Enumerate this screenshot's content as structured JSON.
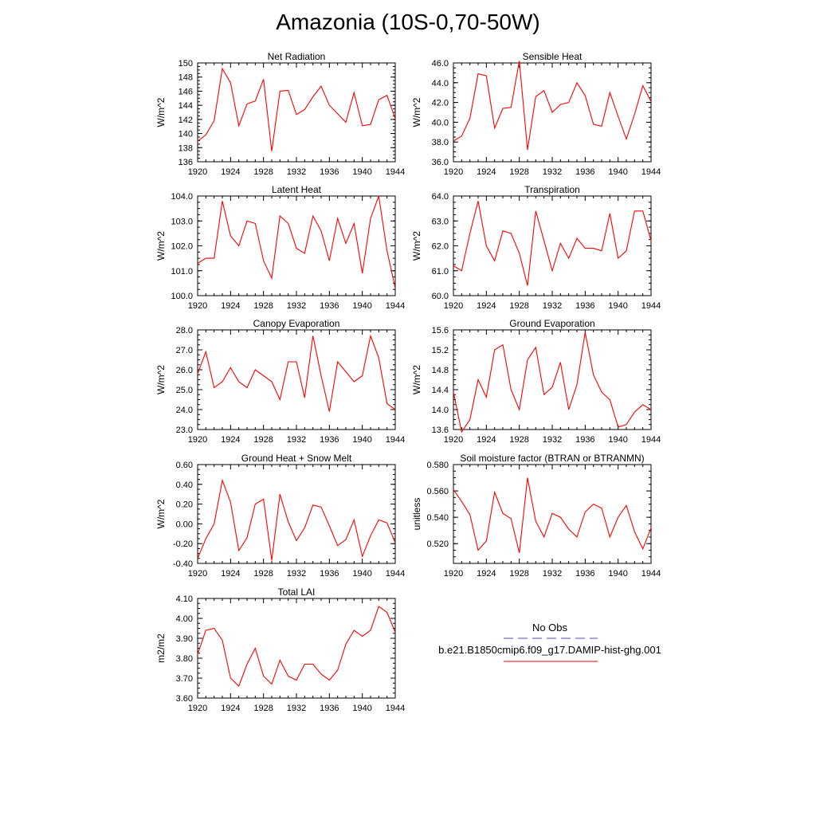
{
  "title": "Amazonia (10S-0,70-50W)",
  "legend": {
    "entries": [
      {
        "label": "No Obs",
        "color": "#4b4bb4",
        "style": "dashed"
      },
      {
        "label": "b.e21.B1850cmip6.f09_g17.DAMIP-hist-ghg.001",
        "color": "#ff0000",
        "style": "solid"
      }
    ]
  },
  "chart_data": [
    {
      "type": "line",
      "title": "Net Radiation",
      "ylabel": "W/m^2",
      "xlim": [
        1920,
        1944
      ],
      "ylim": [
        136,
        150
      ],
      "xticks": [
        "1920",
        "1924",
        "1928",
        "1932",
        "1936",
        "1940",
        "1944"
      ],
      "yticks": [
        "136",
        "138",
        "140",
        "142",
        "144",
        "146",
        "148",
        "150"
      ],
      "x": [
        1920,
        1921,
        1922,
        1923,
        1924,
        1925,
        1926,
        1927,
        1928,
        1929,
        1930,
        1931,
        1932,
        1933,
        1934,
        1935,
        1936,
        1937,
        1938,
        1939,
        1940,
        1941,
        1942,
        1943,
        1944
      ],
      "series": [
        {
          "color": "#ff0000",
          "values": [
            138.9,
            139.8,
            141.8,
            149.2,
            147.2,
            141.1,
            144.2,
            144.6,
            147.7,
            137.5,
            146.0,
            146.1,
            142.7,
            143.4,
            145.2,
            146.7,
            144.0,
            142.8,
            141.6,
            145.8,
            141.1,
            141.3,
            144.8,
            145.4,
            142.1
          ]
        }
      ]
    },
    {
      "type": "line",
      "title": "Sensible Heat",
      "ylabel": "W/m^2",
      "xlim": [
        1920,
        1944
      ],
      "ylim": [
        36,
        46
      ],
      "xticks": [
        "1920",
        "1924",
        "1928",
        "1932",
        "1936",
        "1940",
        "1944"
      ],
      "yticks": [
        "36.0",
        "38.0",
        "40.0",
        "42.0",
        "44.0",
        "46.0"
      ],
      "x": [
        1920,
        1921,
        1922,
        1923,
        1924,
        1925,
        1926,
        1927,
        1928,
        1929,
        1930,
        1931,
        1932,
        1933,
        1934,
        1935,
        1936,
        1937,
        1938,
        1939,
        1940,
        1941,
        1942,
        1943,
        1944
      ],
      "series": [
        {
          "color": "#ff0000",
          "values": [
            38.1,
            38.6,
            40.4,
            44.9,
            44.7,
            39.4,
            41.4,
            41.5,
            46.2,
            37.2,
            42.6,
            43.2,
            41.0,
            41.8,
            42.0,
            44.0,
            42.7,
            39.8,
            39.6,
            43.0,
            40.6,
            38.3,
            40.8,
            43.7,
            42.1
          ]
        }
      ]
    },
    {
      "type": "line",
      "title": "Latent Heat",
      "ylabel": "W/m^2",
      "xlim": [
        1920,
        1944
      ],
      "ylim": [
        100,
        104
      ],
      "xticks": [
        "1920",
        "1924",
        "1928",
        "1932",
        "1936",
        "1940",
        "1944"
      ],
      "yticks": [
        "100.0",
        "101.0",
        "102.0",
        "103.0",
        "104.0"
      ],
      "x": [
        1920,
        1921,
        1922,
        1923,
        1924,
        1925,
        1926,
        1927,
        1928,
        1929,
        1930,
        1931,
        1932,
        1933,
        1934,
        1935,
        1936,
        1937,
        1938,
        1939,
        1940,
        1941,
        1942,
        1943,
        1944
      ],
      "series": [
        {
          "color": "#ff0000",
          "values": [
            101.3,
            101.5,
            101.5,
            103.8,
            102.4,
            102.0,
            103.0,
            102.9,
            101.4,
            100.7,
            103.2,
            102.9,
            101.9,
            101.7,
            103.2,
            102.6,
            101.4,
            103.1,
            102.1,
            102.9,
            100.9,
            103.1,
            104.0,
            101.8,
            100.3
          ]
        }
      ]
    },
    {
      "type": "line",
      "title": "Transpiration",
      "ylabel": "W/m^2",
      "xlim": [
        1920,
        1944
      ],
      "ylim": [
        60,
        64
      ],
      "xticks": [
        "1920",
        "1924",
        "1928",
        "1932",
        "1936",
        "1940",
        "1944"
      ],
      "yticks": [
        "60.0",
        "61.0",
        "62.0",
        "63.0",
        "64.0"
      ],
      "x": [
        1920,
        1921,
        1922,
        1923,
        1924,
        1925,
        1926,
        1927,
        1928,
        1929,
        1930,
        1931,
        1932,
        1933,
        1934,
        1935,
        1936,
        1937,
        1938,
        1939,
        1940,
        1941,
        1942,
        1943,
        1944
      ],
      "series": [
        {
          "color": "#ff0000",
          "values": [
            61.2,
            61.0,
            62.5,
            63.8,
            62.0,
            61.4,
            62.6,
            62.5,
            61.7,
            60.4,
            63.4,
            62.2,
            61.0,
            62.1,
            61.5,
            62.3,
            61.9,
            61.9,
            61.8,
            63.3,
            61.5,
            61.8,
            63.4,
            63.4,
            62.2
          ]
        }
      ]
    },
    {
      "type": "line",
      "title": "Canopy Evaporation",
      "ylabel": "W/m^2",
      "xlim": [
        1920,
        1944
      ],
      "ylim": [
        23,
        28
      ],
      "xticks": [
        "1920",
        "1924",
        "1928",
        "1932",
        "1936",
        "1940",
        "1944"
      ],
      "yticks": [
        "23.0",
        "24.0",
        "25.0",
        "26.0",
        "27.0",
        "28.0"
      ],
      "x": [
        1920,
        1921,
        1922,
        1923,
        1924,
        1925,
        1926,
        1927,
        1928,
        1929,
        1930,
        1931,
        1932,
        1933,
        1934,
        1935,
        1936,
        1937,
        1938,
        1939,
        1940,
        1941,
        1942,
        1943,
        1944
      ],
      "series": [
        {
          "color": "#ff0000",
          "values": [
            25.8,
            26.9,
            25.1,
            25.4,
            26.1,
            25.4,
            25.1,
            26.0,
            25.7,
            25.4,
            24.5,
            26.4,
            26.4,
            24.6,
            27.7,
            25.7,
            23.9,
            26.4,
            25.9,
            25.4,
            25.7,
            27.7,
            26.6,
            24.3,
            24.0
          ]
        }
      ]
    },
    {
      "type": "line",
      "title": "Ground Evaporation",
      "ylabel": "W/m^2",
      "xlim": [
        1920,
        1944
      ],
      "ylim": [
        13.6,
        15.6
      ],
      "xticks": [
        "1920",
        "1924",
        "1928",
        "1932",
        "1936",
        "1940",
        "1944"
      ],
      "yticks": [
        "13.6",
        "14.0",
        "14.4",
        "14.8",
        "15.2",
        "15.6"
      ],
      "x": [
        1920,
        1921,
        1922,
        1923,
        1924,
        1925,
        1926,
        1927,
        1928,
        1929,
        1930,
        1931,
        1932,
        1933,
        1934,
        1935,
        1936,
        1937,
        1938,
        1939,
        1940,
        1941,
        1942,
        1943,
        1944
      ],
      "series": [
        {
          "color": "#ff0000",
          "values": [
            14.35,
            13.55,
            13.8,
            14.6,
            14.25,
            15.2,
            15.3,
            14.4,
            14.0,
            15.0,
            15.25,
            14.3,
            14.45,
            14.95,
            14.0,
            14.5,
            15.55,
            14.7,
            14.35,
            14.2,
            13.65,
            13.7,
            13.95,
            14.1,
            14.0
          ]
        }
      ]
    },
    {
      "type": "line",
      "title": "Ground Heat + Snow Melt",
      "ylabel": "W/m^2",
      "xlim": [
        1920,
        1944
      ],
      "ylim": [
        -0.4,
        0.6
      ],
      "xticks": [
        "1920",
        "1924",
        "1928",
        "1932",
        "1936",
        "1940",
        "1944"
      ],
      "yticks": [
        "-0.40",
        "-0.20",
        "0.00",
        "0.20",
        "0.40",
        "0.60"
      ],
      "x": [
        1920,
        1921,
        1922,
        1923,
        1924,
        1925,
        1926,
        1927,
        1928,
        1929,
        1930,
        1931,
        1932,
        1933,
        1934,
        1935,
        1936,
        1937,
        1938,
        1939,
        1940,
        1941,
        1942,
        1943,
        1944
      ],
      "series": [
        {
          "color": "#ff0000",
          "values": [
            -0.35,
            -0.15,
            0.0,
            0.44,
            0.22,
            -0.27,
            -0.14,
            0.2,
            0.25,
            -0.37,
            0.3,
            0.02,
            -0.17,
            -0.04,
            0.19,
            0.17,
            -0.02,
            -0.22,
            -0.16,
            0.04,
            -0.33,
            -0.12,
            0.04,
            0.01,
            -0.19
          ]
        }
      ]
    },
    {
      "type": "line",
      "title": "Soil moisture factor (BTRAN or BTRANMN)",
      "ylabel": "unitless",
      "xlim": [
        1920,
        1944
      ],
      "ylim": [
        0.505,
        0.58
      ],
      "xticks": [
        "1920",
        "1924",
        "1928",
        "1932",
        "1936",
        "1940",
        "1944"
      ],
      "yticks": [
        "0.520",
        "0.540",
        "0.560",
        "0.580"
      ],
      "ytick_values": [
        0.52,
        0.54,
        0.56,
        0.58
      ],
      "x": [
        1920,
        1921,
        1922,
        1923,
        1924,
        1925,
        1926,
        1927,
        1928,
        1929,
        1930,
        1931,
        1932,
        1933,
        1934,
        1935,
        1936,
        1937,
        1938,
        1939,
        1940,
        1941,
        1942,
        1943,
        1944
      ],
      "series": [
        {
          "color": "#ff0000",
          "values": [
            0.561,
            0.552,
            0.542,
            0.515,
            0.522,
            0.559,
            0.543,
            0.539,
            0.513,
            0.57,
            0.537,
            0.525,
            0.543,
            0.54,
            0.531,
            0.525,
            0.544,
            0.55,
            0.547,
            0.525,
            0.54,
            0.549,
            0.529,
            0.516,
            0.532
          ]
        }
      ]
    },
    {
      "type": "line",
      "title": "Total LAI",
      "ylabel": "m2/m2",
      "xlim": [
        1920,
        1944
      ],
      "ylim": [
        3.6,
        4.1
      ],
      "xticks": [
        "1920",
        "1924",
        "1928",
        "1932",
        "1936",
        "1940",
        "1944"
      ],
      "yticks": [
        "3.60",
        "3.70",
        "3.80",
        "3.90",
        "4.00",
        "4.10"
      ],
      "x": [
        1920,
        1921,
        1922,
        1923,
        1924,
        1925,
        1926,
        1927,
        1928,
        1929,
        1930,
        1931,
        1932,
        1933,
        1934,
        1935,
        1936,
        1937,
        1938,
        1939,
        1940,
        1941,
        1942,
        1943,
        1944
      ],
      "series": [
        {
          "color": "#ff0000",
          "values": [
            3.82,
            3.94,
            3.95,
            3.89,
            3.7,
            3.66,
            3.77,
            3.85,
            3.71,
            3.67,
            3.79,
            3.71,
            3.69,
            3.77,
            3.77,
            3.72,
            3.69,
            3.74,
            3.87,
            3.94,
            3.91,
            3.94,
            4.06,
            4.03,
            3.93
          ]
        }
      ]
    }
  ]
}
